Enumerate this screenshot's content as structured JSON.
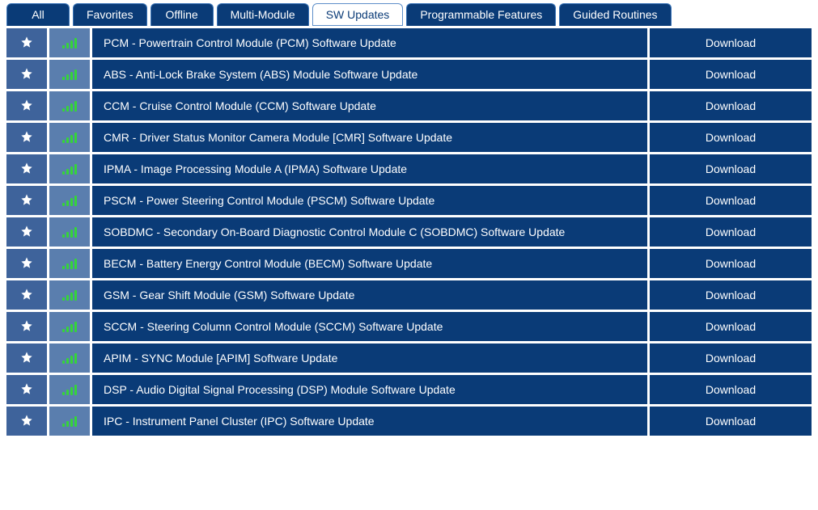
{
  "colors": {
    "tab_bg": "#0a3b77",
    "tab_active_bg": "#ffffff",
    "tab_active_fg": "#0a3b77",
    "fav_bg": "#3e639b",
    "signal_bg": "#5a7eae",
    "row_bg": "#0a3b77",
    "signal_bar": "#35d43a",
    "text": "#ffffff"
  },
  "tabs": [
    {
      "label": "All",
      "active": false
    },
    {
      "label": "Favorites",
      "active": false
    },
    {
      "label": "Offline",
      "active": false
    },
    {
      "label": "Multi-Module",
      "active": false
    },
    {
      "label": "SW Updates",
      "active": true
    },
    {
      "label": "Programmable Features",
      "active": false
    },
    {
      "label": "Guided Routines",
      "active": false
    }
  ],
  "download_label": "Download",
  "rows": [
    {
      "title": "PCM - Powertrain Control Module (PCM) Software Update"
    },
    {
      "title": "ABS - Anti-Lock Brake System (ABS) Module Software Update"
    },
    {
      "title": "CCM - Cruise Control Module (CCM) Software Update"
    },
    {
      "title": "CMR - Driver Status Monitor Camera Module [CMR] Software Update"
    },
    {
      "title": "IPMA - Image Processing Module A (IPMA) Software Update"
    },
    {
      "title": "PSCM - Power Steering Control Module (PSCM) Software Update"
    },
    {
      "title": "SOBDMC - Secondary On-Board Diagnostic Control Module C (SOBDMC) Software Update"
    },
    {
      "title": "BECM - Battery Energy Control Module (BECM) Software Update"
    },
    {
      "title": "GSM - Gear Shift Module (GSM) Software Update"
    },
    {
      "title": "SCCM - Steering Column Control Module (SCCM) Software Update"
    },
    {
      "title": "APIM - SYNC Module [APIM] Software Update"
    },
    {
      "title": "DSP - Audio Digital Signal Processing (DSP) Module Software Update"
    },
    {
      "title": "IPC - Instrument Panel Cluster (IPC) Software Update"
    }
  ]
}
